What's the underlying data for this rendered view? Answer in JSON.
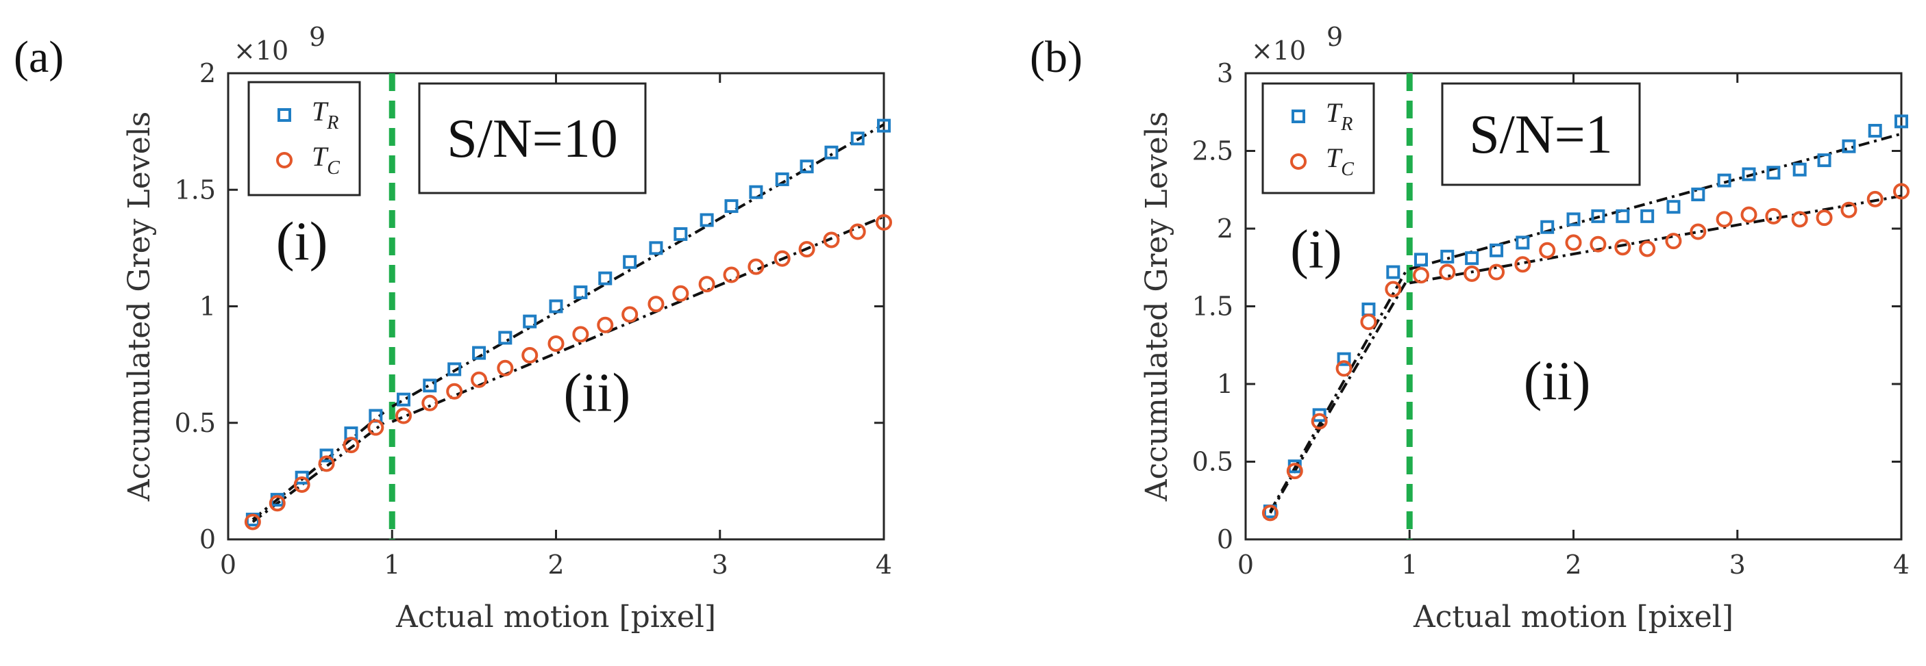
{
  "chart_data": [
    {
      "type": "scatter",
      "panel_label": "(a)",
      "xlabel": "Actual motion [pixel]",
      "ylabel": "Accumulated Grey Levels",
      "y_multiplier": "×10",
      "y_multiplier_exp": "9",
      "xlim": [
        0,
        4
      ],
      "ylim": [
        0,
        2
      ],
      "xticks": [
        "0",
        "1",
        "2",
        "3",
        "4"
      ],
      "yticks": [
        "0",
        "0.5",
        "1",
        "1.5",
        "2"
      ],
      "xtick_values": [
        0,
        1,
        2,
        3,
        4
      ],
      "ytick_values": [
        0,
        0.5,
        1,
        1.5,
        2
      ],
      "threshold_x": 1,
      "annotation_box": "S/N=10",
      "region_labels": [
        {
          "text": "(i)",
          "x": 0.45,
          "y": 1.2
        },
        {
          "text": "(ii)",
          "x": 2.25,
          "y": 0.55
        }
      ],
      "legend": [
        {
          "symbol": "T",
          "subscript": "R",
          "marker": "square",
          "color": "#1f7ec4"
        },
        {
          "symbol": "T",
          "subscript": "C",
          "marker": "circle",
          "color": "#e3572a"
        }
      ],
      "series": [
        {
          "name": "T_R",
          "x": [
            0.15,
            0.3,
            0.45,
            0.6,
            0.75,
            0.9,
            1.07,
            1.23,
            1.38,
            1.53,
            1.69,
            1.84,
            2.0,
            2.15,
            2.3,
            2.45,
            2.61,
            2.76,
            2.92,
            3.07,
            3.22,
            3.38,
            3.53,
            3.68,
            3.84,
            4.0
          ],
          "y": [
            0.085,
            0.17,
            0.265,
            0.36,
            0.455,
            0.53,
            0.6,
            0.66,
            0.73,
            0.8,
            0.865,
            0.935,
            1.0,
            1.06,
            1.12,
            1.19,
            1.25,
            1.31,
            1.37,
            1.43,
            1.49,
            1.545,
            1.6,
            1.66,
            1.72,
            1.775
          ]
        },
        {
          "name": "T_C",
          "x": [
            0.15,
            0.3,
            0.45,
            0.6,
            0.75,
            0.9,
            1.07,
            1.23,
            1.38,
            1.53,
            1.69,
            1.84,
            2.0,
            2.15,
            2.3,
            2.45,
            2.61,
            2.76,
            2.92,
            3.07,
            3.22,
            3.38,
            3.53,
            3.68,
            3.84,
            4.0
          ],
          "y": [
            0.075,
            0.155,
            0.235,
            0.325,
            0.405,
            0.48,
            0.53,
            0.585,
            0.635,
            0.685,
            0.735,
            0.79,
            0.84,
            0.88,
            0.92,
            0.965,
            1.01,
            1.055,
            1.095,
            1.135,
            1.17,
            1.205,
            1.245,
            1.285,
            1.32,
            1.36
          ]
        }
      ],
      "fit_lines": [
        {
          "x": [
            0.15,
            0.95
          ],
          "y": [
            0.085,
            0.545
          ]
        },
        {
          "x": [
            0.15,
            0.95
          ],
          "y": [
            0.075,
            0.5
          ]
        },
        {
          "x": [
            1.0,
            4.0
          ],
          "y": [
            0.57,
            1.78
          ]
        },
        {
          "x": [
            1.0,
            4.0
          ],
          "y": [
            0.505,
            1.385
          ]
        }
      ]
    },
    {
      "type": "scatter",
      "panel_label": "(b)",
      "xlabel": "Actual motion [pixel]",
      "ylabel": "Accumulated Grey Levels",
      "y_multiplier": "×10",
      "y_multiplier_exp": "9",
      "xlim": [
        0,
        4
      ],
      "ylim": [
        0,
        3
      ],
      "xticks": [
        "0",
        "1",
        "2",
        "3",
        "4"
      ],
      "yticks": [
        "0",
        "0.5",
        "1",
        "1.5",
        "2",
        "2.5",
        "3"
      ],
      "xtick_values": [
        0,
        1,
        2,
        3,
        4
      ],
      "ytick_values": [
        0,
        0.5,
        1,
        1.5,
        2,
        2.5,
        3
      ],
      "threshold_x": 1,
      "annotation_box": "S/N=1",
      "region_labels": [
        {
          "text": "(i)",
          "x": 0.43,
          "y": 1.75
        },
        {
          "text": "(ii)",
          "x": 1.9,
          "y": 0.9
        }
      ],
      "legend": [
        {
          "symbol": "T",
          "subscript": "R",
          "marker": "square",
          "color": "#1f7ec4"
        },
        {
          "symbol": "T",
          "subscript": "C",
          "marker": "circle",
          "color": "#e3572a"
        }
      ],
      "series": [
        {
          "name": "T_R",
          "x": [
            0.15,
            0.3,
            0.45,
            0.6,
            0.75,
            0.9,
            1.07,
            1.23,
            1.38,
            1.53,
            1.69,
            1.84,
            2.0,
            2.15,
            2.3,
            2.45,
            2.61,
            2.76,
            2.92,
            3.07,
            3.22,
            3.38,
            3.53,
            3.68,
            3.84,
            4.0
          ],
          "y": [
            0.18,
            0.47,
            0.8,
            1.16,
            1.48,
            1.72,
            1.8,
            1.82,
            1.81,
            1.86,
            1.91,
            2.01,
            2.06,
            2.08,
            2.08,
            2.08,
            2.14,
            2.22,
            2.31,
            2.35,
            2.36,
            2.38,
            2.44,
            2.53,
            2.63,
            2.69
          ]
        },
        {
          "name": "T_C",
          "x": [
            0.15,
            0.3,
            0.45,
            0.6,
            0.75,
            0.9,
            1.07,
            1.23,
            1.38,
            1.53,
            1.69,
            1.84,
            2.0,
            2.15,
            2.3,
            2.45,
            2.61,
            2.76,
            2.92,
            3.07,
            3.22,
            3.38,
            3.53,
            3.68,
            3.84,
            4.0
          ],
          "y": [
            0.17,
            0.44,
            0.76,
            1.1,
            1.4,
            1.61,
            1.7,
            1.72,
            1.71,
            1.72,
            1.77,
            1.86,
            1.91,
            1.9,
            1.88,
            1.87,
            1.92,
            1.98,
            2.06,
            2.09,
            2.08,
            2.06,
            2.07,
            2.12,
            2.19,
            2.24
          ]
        }
      ],
      "fit_lines": [
        {
          "x": [
            0.15,
            0.98
          ],
          "y": [
            0.18,
            1.73
          ]
        },
        {
          "x": [
            0.15,
            0.98
          ],
          "y": [
            0.17,
            1.66
          ]
        },
        {
          "x": [
            1.0,
            4.0
          ],
          "y": [
            1.74,
            2.61
          ]
        },
        {
          "x": [
            1.0,
            4.0
          ],
          "y": [
            1.65,
            2.21
          ]
        }
      ]
    }
  ]
}
